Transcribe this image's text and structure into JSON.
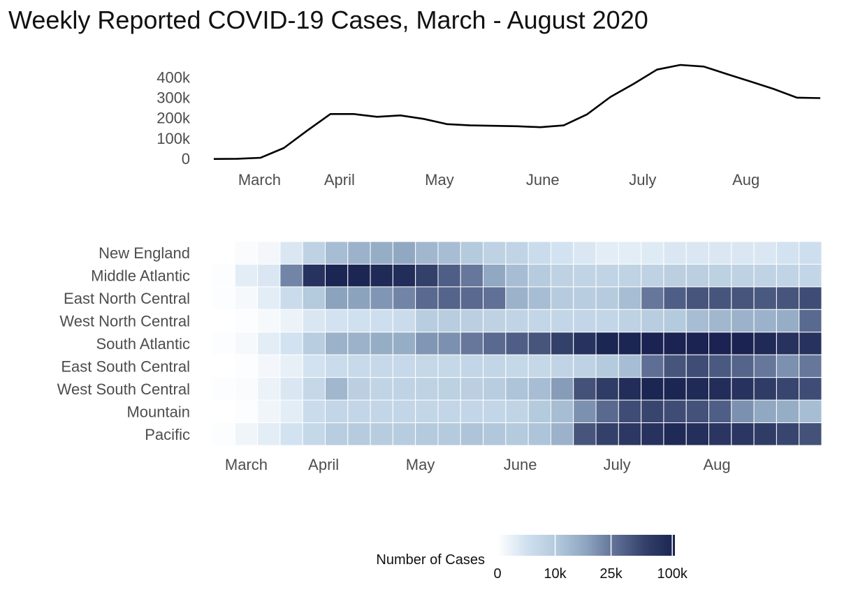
{
  "title": "Weekly Reported COVID-19 Cases, March - August 2020",
  "chart_data": [
    {
      "type": "line",
      "name": "national",
      "x": [
        "2020-03-01",
        "2020-03-08",
        "2020-03-15",
        "2020-03-22",
        "2020-03-29",
        "2020-04-05",
        "2020-04-12",
        "2020-04-19",
        "2020-04-26",
        "2020-05-03",
        "2020-05-10",
        "2020-05-17",
        "2020-05-24",
        "2020-05-31",
        "2020-06-07",
        "2020-06-14",
        "2020-06-21",
        "2020-06-28",
        "2020-07-05",
        "2020-07-12",
        "2020-07-19",
        "2020-07-26",
        "2020-08-02",
        "2020-08-09",
        "2020-08-16",
        "2020-08-23",
        "2020-08-30"
      ],
      "values": [
        1000,
        2000,
        7000,
        55000,
        140000,
        222000,
        222000,
        208000,
        215000,
        198000,
        172000,
        166000,
        164000,
        162000,
        157000,
        166000,
        220000,
        305000,
        370000,
        440000,
        463000,
        455000,
        418000,
        382000,
        345000,
        302000,
        300000
      ],
      "ylim": [
        0,
        480000
      ],
      "yticks": [
        0,
        100000,
        200000,
        300000,
        400000
      ],
      "ytick_labels": [
        "0",
        "100k",
        "200k",
        "300k",
        "400k"
      ],
      "xticks": [
        "2020-03-08",
        "2020-04-01",
        "2020-05-01",
        "2020-06-01",
        "2020-07-01",
        "2020-08-01"
      ],
      "xtick_labels": [
        "March",
        "April",
        "May",
        "June",
        "July",
        "Aug"
      ],
      "line_color": "#000000"
    },
    {
      "type": "heatmap",
      "name": "regions",
      "rows": [
        "New England",
        "Middle Atlantic",
        "East North Central",
        "West North Central",
        "South Atlantic",
        "East South Central",
        "West South Central",
        "Mountain",
        "Pacific"
      ],
      "columns": [
        "2020-03-01",
        "2020-03-08",
        "2020-03-15",
        "2020-03-22",
        "2020-03-29",
        "2020-04-05",
        "2020-04-12",
        "2020-04-19",
        "2020-04-26",
        "2020-05-03",
        "2020-05-10",
        "2020-05-17",
        "2020-05-24",
        "2020-05-31",
        "2020-06-07",
        "2020-06-14",
        "2020-06-21",
        "2020-06-28",
        "2020-07-05",
        "2020-07-12",
        "2020-07-19",
        "2020-07-26",
        "2020-08-02",
        "2020-08-09",
        "2020-08-16",
        "2020-08-23",
        "2020-08-30"
      ],
      "values": [
        [
          0,
          200,
          400,
          1500,
          6000,
          12000,
          14000,
          15000,
          16000,
          13000,
          12000,
          10000,
          6000,
          5000,
          3000,
          2000,
          1500,
          1000,
          1000,
          1200,
          1500,
          1500,
          1500,
          1500,
          1500,
          2000,
          2500
        ],
        [
          100,
          1000,
          1500,
          22000,
          75000,
          100000,
          100000,
          90000,
          85000,
          55000,
          35000,
          25000,
          16000,
          12000,
          9000,
          6000,
          5000,
          5000,
          5500,
          6000,
          7000,
          7000,
          6500,
          6000,
          5500,
          5000,
          4500
        ],
        [
          100,
          300,
          1000,
          3000,
          10000,
          17000,
          17000,
          19000,
          22000,
          30000,
          32000,
          30000,
          27000,
          14000,
          12000,
          9000,
          8000,
          9000,
          12000,
          25000,
          35000,
          40000,
          40000,
          40000,
          38000,
          40000,
          45000
        ],
        [
          0,
          100,
          300,
          700,
          1500,
          2000,
          2200,
          2500,
          3000,
          8000,
          8000,
          7000,
          6000,
          5000,
          4500,
          4500,
          4500,
          4500,
          6000,
          8000,
          10000,
          12000,
          13000,
          14000,
          14000,
          15000,
          30000
        ],
        [
          100,
          300,
          1000,
          2000,
          8000,
          14000,
          14000,
          15000,
          15000,
          19000,
          20000,
          25000,
          30000,
          35000,
          40000,
          55000,
          75000,
          100000,
          100000,
          110000,
          120000,
          110000,
          120000,
          110000,
          90000,
          75000,
          75000
        ],
        [
          0,
          100,
          400,
          800,
          2000,
          3000,
          3500,
          3800,
          3800,
          4000,
          4000,
          4500,
          4500,
          4000,
          4000,
          5000,
          6000,
          10000,
          12000,
          28000,
          40000,
          45000,
          38000,
          32000,
          25000,
          20000,
          25000
        ],
        [
          100,
          200,
          700,
          1500,
          4000,
          13000,
          7000,
          5000,
          5500,
          6000,
          6500,
          7000,
          8000,
          11000,
          12000,
          18000,
          42000,
          60000,
          85000,
          100000,
          100000,
          90000,
          85000,
          75000,
          60000,
          50000,
          45000
        ],
        [
          0,
          100,
          500,
          1000,
          3000,
          4500,
          4500,
          4500,
          4500,
          4500,
          4500,
          4500,
          4500,
          5000,
          10000,
          12000,
          20000,
          30000,
          45000,
          50000,
          45000,
          42000,
          35000,
          20000,
          16000,
          15000,
          12000
        ],
        [
          100,
          500,
          1000,
          2000,
          4000,
          8000,
          9000,
          8500,
          8500,
          10000,
          10000,
          11000,
          10500,
          10000,
          11000,
          14000,
          40000,
          55000,
          65000,
          75000,
          90000,
          80000,
          70000,
          68000,
          60000,
          50000,
          42000
        ]
      ],
      "colorscale": [
        "#ffffff",
        "#cfe0ef",
        "#b3c9dc",
        "#8ea5c0",
        "#5e6e94",
        "#33406a",
        "#1a2351"
      ],
      "xticks": [
        "2020-03-08",
        "2020-04-01",
        "2020-05-01",
        "2020-06-01",
        "2020-07-01",
        "2020-08-01"
      ],
      "xtick_labels": [
        "March",
        "April",
        "May",
        "June",
        "July",
        "Aug"
      ]
    }
  ],
  "legend": {
    "title": "Number of Cases",
    "ticks": [
      0,
      10000,
      25000,
      100000
    ],
    "tick_labels": [
      "0",
      "10k",
      "25k",
      "100k"
    ]
  }
}
